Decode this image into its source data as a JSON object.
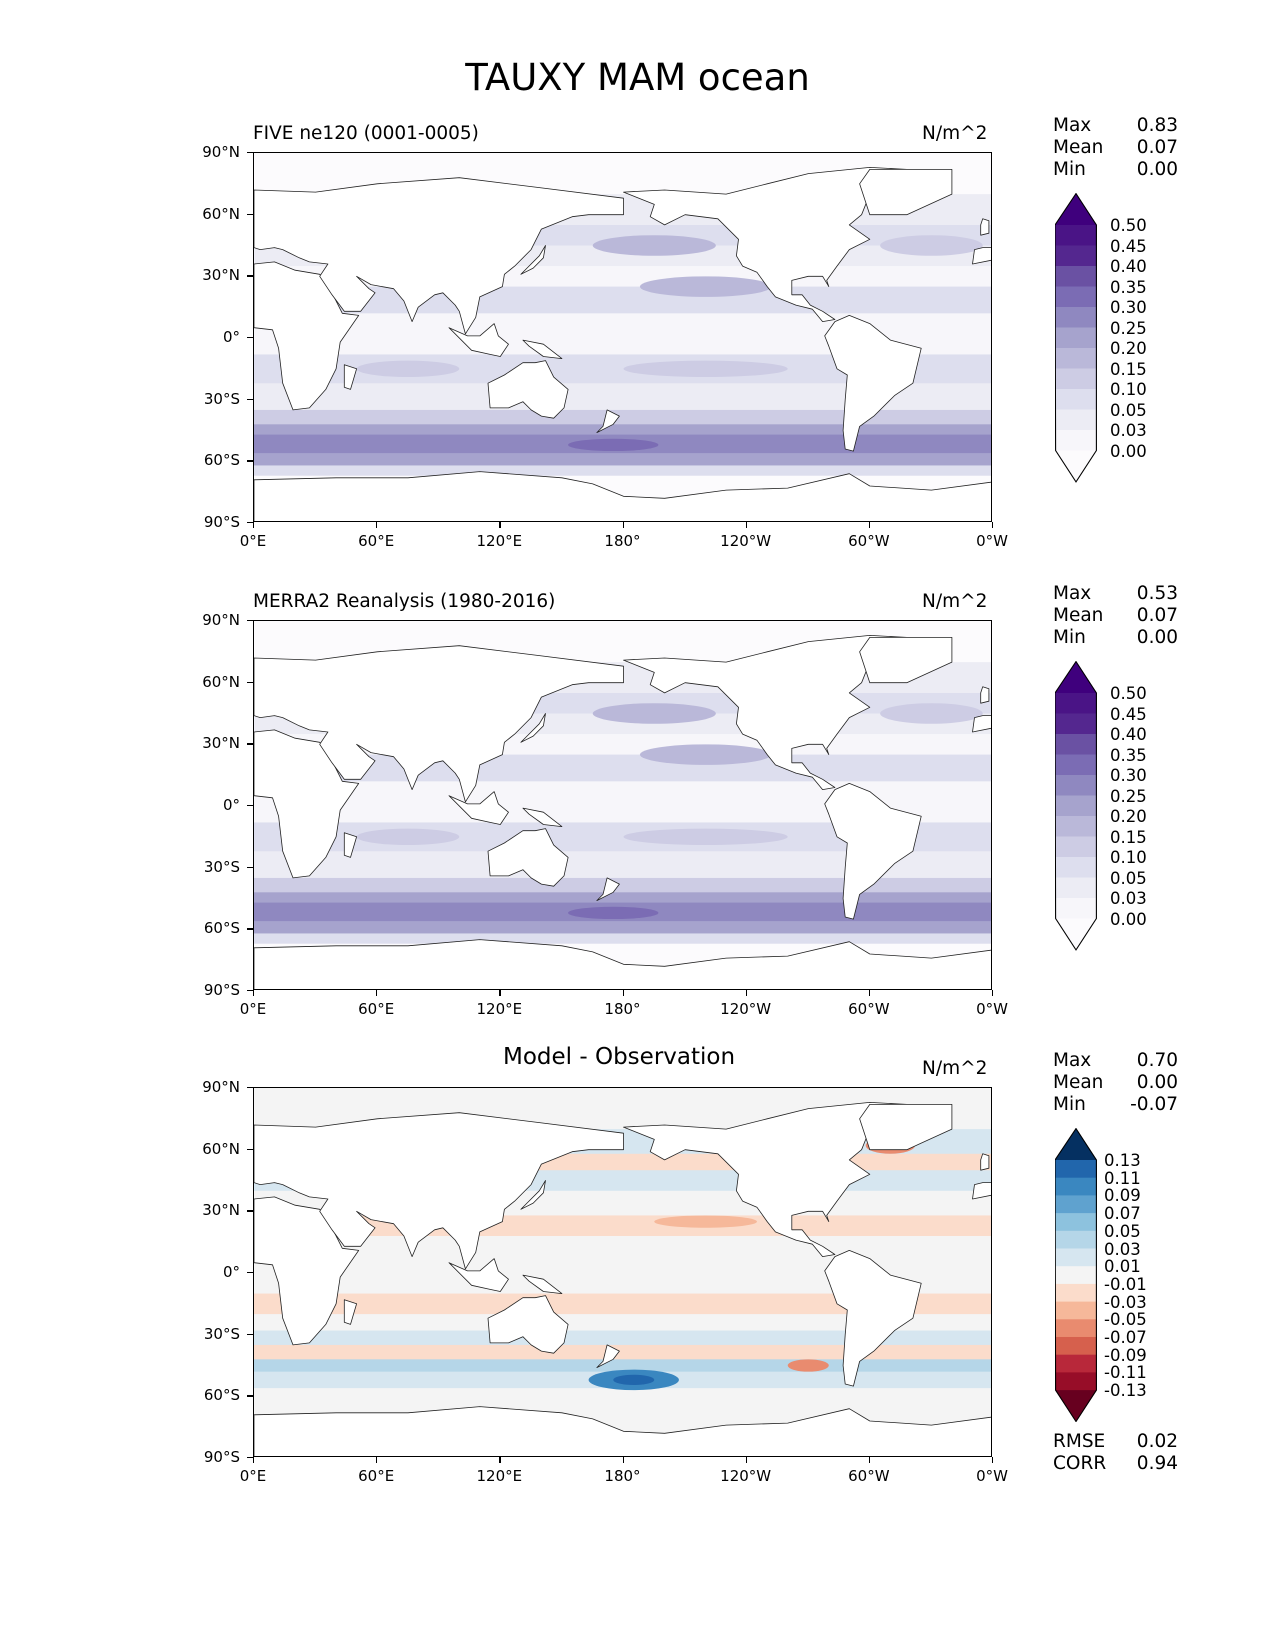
{
  "title": "TAUXY MAM ocean",
  "chart_data": [
    {
      "type": "heatmap",
      "title": "FIVE ne120 (0001-0005)",
      "units": "N/m^2",
      "stats": [
        {
          "label": "Max",
          "value": "0.83"
        },
        {
          "label": "Mean",
          "value": "0.07"
        },
        {
          "label": "Min",
          "value": "0.00"
        }
      ],
      "y_ticks": [
        "90°N",
        "60°N",
        "30°N",
        "0°",
        "30°S",
        "60°S",
        "90°S"
      ],
      "x_ticks": [
        "0°E",
        "60°E",
        "120°E",
        "180°",
        "120°W",
        "60°W",
        "0°W"
      ],
      "levels": [
        "0.50",
        "0.45",
        "0.40",
        "0.35",
        "0.30",
        "0.25",
        "0.20",
        "0.15",
        "0.10",
        "0.05",
        "0.03",
        "0.00"
      ],
      "colors": [
        "#3f007d",
        "#4a1486",
        "#54278f",
        "#6a51a3",
        "#7b6cb4",
        "#8f88c0",
        "#a6a3cd",
        "#bab8d9",
        "#cdcce4",
        "#dddeee",
        "#ececf4",
        "#f7f6fa",
        "#fcfbfd"
      ]
    },
    {
      "type": "heatmap",
      "title": "MERRA2 Reanalysis (1980-2016)",
      "units": "N/m^2",
      "stats": [
        {
          "label": "Max",
          "value": "0.53"
        },
        {
          "label": "Mean",
          "value": "0.07"
        },
        {
          "label": "Min",
          "value": "0.00"
        }
      ],
      "y_ticks": [
        "90°N",
        "60°N",
        "30°N",
        "0°",
        "30°S",
        "60°S",
        "90°S"
      ],
      "x_ticks": [
        "0°E",
        "60°E",
        "120°E",
        "180°",
        "120°W",
        "60°W",
        "0°W"
      ],
      "levels": [
        "0.50",
        "0.45",
        "0.40",
        "0.35",
        "0.30",
        "0.25",
        "0.20",
        "0.15",
        "0.10",
        "0.05",
        "0.03",
        "0.00"
      ],
      "colors": [
        "#3f007d",
        "#4a1486",
        "#54278f",
        "#6a51a3",
        "#7b6cb4",
        "#8f88c0",
        "#a6a3cd",
        "#bab8d9",
        "#cdcce4",
        "#dddeee",
        "#ececf4",
        "#f7f6fa",
        "#fcfbfd"
      ]
    },
    {
      "type": "heatmap",
      "title": "Model - Observation",
      "units": "N/m^2",
      "stats": [
        {
          "label": "Max",
          "value": "0.70"
        },
        {
          "label": "Mean",
          "value": "0.00"
        },
        {
          "label": "Min",
          "value": "-0.07"
        }
      ],
      "footer_stats": [
        {
          "label": "RMSE",
          "value": "0.02"
        },
        {
          "label": "CORR",
          "value": "0.94"
        }
      ],
      "y_ticks": [
        "90°N",
        "60°N",
        "30°N",
        "0°",
        "30°S",
        "60°S",
        "90°S"
      ],
      "x_ticks": [
        "0°E",
        "60°E",
        "120°E",
        "180°",
        "120°W",
        "60°W",
        "0°W"
      ],
      "levels": [
        "0.13",
        "0.11",
        "0.09",
        "0.07",
        "0.05",
        "0.03",
        "0.01",
        "-0.01",
        "-0.03",
        "-0.05",
        "-0.07",
        "-0.09",
        "-0.11",
        "-0.13"
      ],
      "colors": [
        "#053061",
        "#2166ac",
        "#3a87c0",
        "#5fa2cf",
        "#8dc2de",
        "#b5d6e8",
        "#d6e6f0",
        "#f4f4f4",
        "#fbdccb",
        "#f6b89a",
        "#e98b6f",
        "#d6604d",
        "#b8283a",
        "#970d28",
        "#67001f"
      ]
    }
  ]
}
